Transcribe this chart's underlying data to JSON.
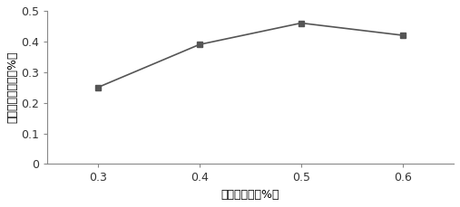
{
  "x": [
    0.3,
    0.4,
    0.5,
    0.6
  ],
  "y": [
    0.25,
    0.39,
    0.46,
    0.42
  ],
  "xlabel": "亚油酸浓度（%）",
  "ylabel": "共轭亚油酸浓度（%）",
  "xlim": [
    0.25,
    0.65
  ],
  "ylim": [
    0,
    0.5
  ],
  "xticks": [
    0.3,
    0.4,
    0.5,
    0.6
  ],
  "xtick_labels": [
    "0.3",
    "0.4",
    "0.5",
    "0.6"
  ],
  "yticks": [
    0,
    0.1,
    0.2,
    0.3,
    0.4,
    0.5
  ],
  "ytick_labels": [
    "0",
    "0.1",
    "0.2",
    "0.3",
    "0.4",
    "0.5"
  ],
  "line_color": "#555555",
  "marker": "s",
  "marker_color": "#555555",
  "marker_size": 5,
  "line_width": 1.2,
  "background_color": "#ffffff",
  "fig_width": 5.07,
  "fig_height": 2.29,
  "dpi": 100
}
